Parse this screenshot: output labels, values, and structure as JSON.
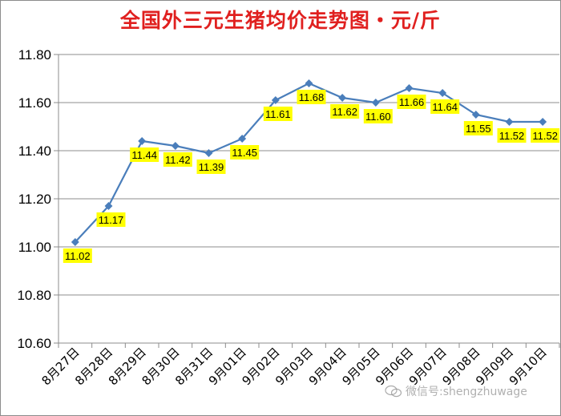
{
  "chart_data": {
    "type": "line",
    "title": "全国外三元生猪均价走势图・元/斤",
    "xlabel": "",
    "ylabel": "",
    "categories": [
      "8月27日",
      "8月28日",
      "8月29日",
      "8月30日",
      "8月31日",
      "9月01日",
      "9月02日",
      "9月03日",
      "9月04日",
      "9月05日",
      "9月06日",
      "9月07日",
      "9月08日",
      "9月09日",
      "9月10日"
    ],
    "series": [
      {
        "values": [
          11.02,
          11.17,
          11.44,
          11.42,
          11.39,
          11.45,
          11.61,
          11.68,
          11.62,
          11.6,
          11.66,
          11.64,
          11.55,
          11.52,
          11.52
        ],
        "data_labels": [
          "11.02",
          "11.17",
          "11.44",
          "11.42",
          "11.39",
          "11.45",
          "11.61",
          "11.68",
          "11.62",
          "11.60",
          "11.66",
          "11.64",
          "11.55",
          "11.52",
          "11.52"
        ],
        "color": "#4a7ebb"
      }
    ],
    "ylim": [
      10.6,
      11.8
    ],
    "yticks": [
      "10.60",
      "10.80",
      "11.00",
      "11.20",
      "11.40",
      "11.60",
      "11.80"
    ],
    "grid": true,
    "legend": "none",
    "label_background": "#ffff00"
  },
  "watermark": "微信号:shengzhuwage",
  "watermark_icon": "wechat-icon"
}
